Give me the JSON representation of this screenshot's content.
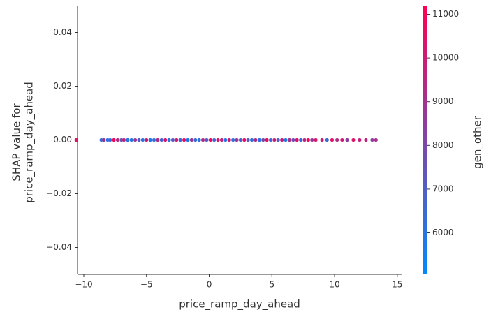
{
  "chart_data": {
    "type": "scatter",
    "xlabel": "price_ramp_day_ahead",
    "ylabel": [
      "SHAP value for",
      "price_ramp_day_ahead"
    ],
    "colorbar_label": "gen_other",
    "x": [
      -10.6,
      -8.6,
      -8.4,
      -8.1,
      -7.9,
      -7.6,
      -7.3,
      -7.0,
      -6.8,
      -6.5,
      -6.2,
      -5.9,
      -5.6,
      -5.3,
      -5.0,
      -4.7,
      -4.4,
      -4.1,
      -3.8,
      -3.5,
      -3.2,
      -2.9,
      -2.6,
      -2.3,
      -2.0,
      -1.7,
      -1.4,
      -1.1,
      -0.8,
      -0.5,
      -0.2,
      0.1,
      0.4,
      0.7,
      1.0,
      1.3,
      1.6,
      1.9,
      2.2,
      2.5,
      2.8,
      3.1,
      3.4,
      3.7,
      4.0,
      4.3,
      4.6,
      4.9,
      5.2,
      5.5,
      5.8,
      6.1,
      6.4,
      6.7,
      7.0,
      7.3,
      7.6,
      7.9,
      8.2,
      8.5,
      9.0,
      9.4,
      9.8,
      10.2,
      10.6,
      11.0,
      11.5,
      12.0,
      12.5,
      13.0,
      13.3
    ],
    "values": [
      0,
      0,
      0,
      0,
      0,
      0,
      0,
      0,
      0,
      0,
      0,
      0,
      0,
      0,
      0,
      0,
      0,
      0,
      0,
      0,
      0,
      0,
      0,
      0,
      0,
      0,
      0,
      0,
      0,
      0,
      0,
      0,
      0,
      0,
      0,
      0,
      0,
      0,
      0,
      0,
      0,
      0,
      0,
      0,
      0,
      0,
      0,
      0,
      0,
      0,
      0,
      0,
      0,
      0,
      0,
      0,
      0,
      0,
      0,
      0,
      0,
      0,
      0,
      0,
      0,
      0,
      0,
      0,
      0,
      0,
      0
    ],
    "color_values": [
      10500,
      6200,
      9000,
      5800,
      6500,
      10800,
      9500,
      7200,
      9800,
      6000,
      5900,
      8800,
      7000,
      6300,
      10200,
      5700,
      6100,
      9200,
      6600,
      10400,
      5800,
      7500,
      9900,
      6200,
      10700,
      5900,
      8600,
      6400,
      6000,
      9300,
      7100,
      10900,
      6700,
      10300,
      9600,
      5800,
      10100,
      6200,
      8900,
      6500,
      10600,
      7300,
      6000,
      9400,
      5900,
      8200,
      10500,
      6300,
      9700,
      6800,
      10000,
      5700,
      9100,
      7800,
      10400,
      6100,
      9500,
      10800,
      8700,
      10200,
      9900,
      6400,
      10600,
      9300,
      10000,
      8500,
      10400,
      9800,
      9600,
      8400,
      9100
    ],
    "colormap": [
      "#008afb",
      "#ff0052"
    ],
    "xlim": [
      -10.5,
      15.4
    ],
    "ylim": [
      -0.05,
      0.05
    ],
    "clim": [
      5050,
      11200
    ],
    "xticks": [
      {
        "value": -10,
        "label": "−10"
      },
      {
        "value": -5,
        "label": "−5"
      },
      0,
      5,
      10,
      15
    ],
    "yticks": [
      {
        "value": -0.04,
        "label": "−0.04"
      },
      {
        "value": -0.02,
        "label": "−0.02"
      },
      {
        "value": 0,
        "label": "0.00"
      },
      {
        "value": 0.02,
        "label": "0.02"
      },
      {
        "value": 0.04,
        "label": "0.04"
      }
    ],
    "cticks": [
      6000,
      7000,
      8000,
      9000,
      10000,
      11000
    ]
  }
}
